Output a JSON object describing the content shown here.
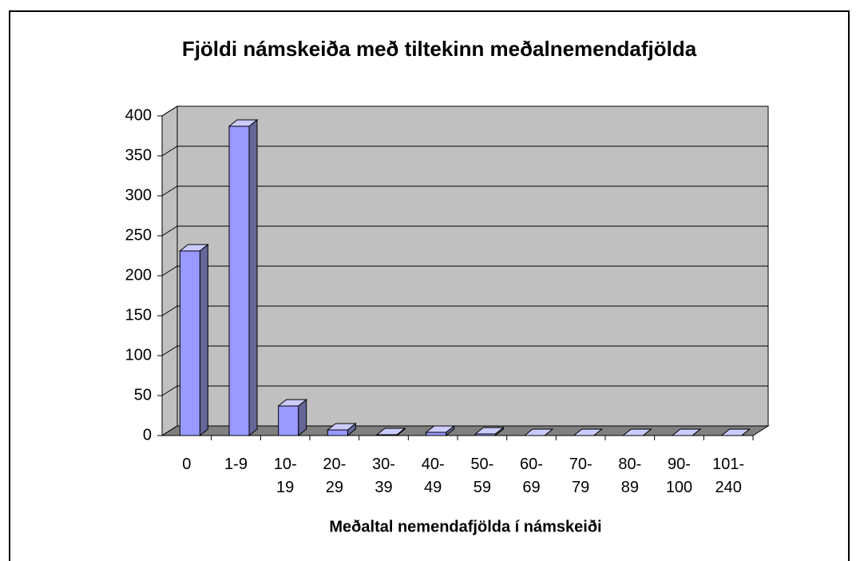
{
  "chart_data": {
    "type": "bar3d",
    "title": "Fjöldi námskeiða með tiltekinn meðalnemendafjölda",
    "x_label": "Meðaltal nemendafjölda í námskeiði",
    "categories": [
      "0",
      "1-9",
      "10-19",
      "20-29",
      "30-39",
      "40-49",
      "50-59",
      "60-69",
      "70-79",
      "80-89",
      "90-100",
      "101-240"
    ],
    "values": [
      231,
      387,
      37,
      7,
      1,
      4,
      2,
      0,
      0,
      0,
      0,
      0
    ],
    "color": "#9999ff",
    "ylim": [
      0,
      400
    ],
    "yticks": [
      0,
      50,
      100,
      150,
      200,
      250,
      300,
      350,
      400
    ],
    "grid": true
  }
}
